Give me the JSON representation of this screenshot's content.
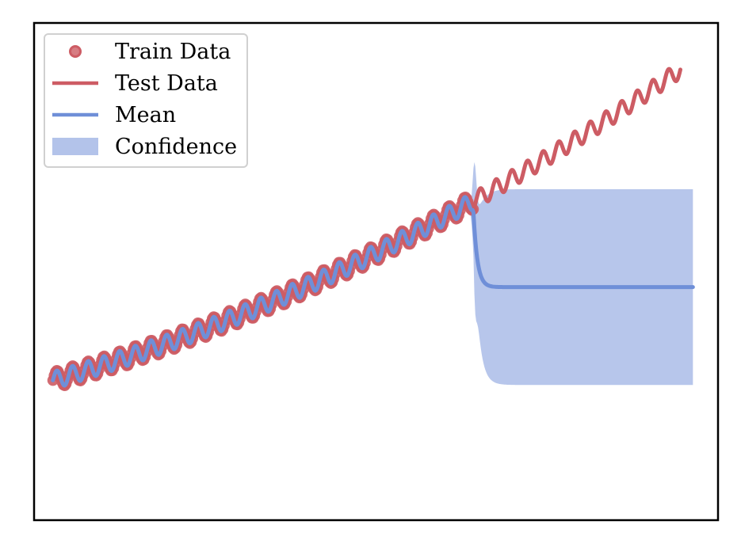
{
  "chart_data": {
    "type": "line",
    "title": "",
    "xlabel": "",
    "ylabel": "",
    "xlim": [
      -0.03,
      1.06
    ],
    "ylim": [
      -0.45,
      1.15
    ],
    "grid": false,
    "ticks_visible": false,
    "legend": {
      "placement": "top-left",
      "entries": [
        {
          "label": "Train Data",
          "kind": "marker",
          "color": "#cd5c64"
        },
        {
          "label": "Test Data",
          "kind": "line",
          "color": "#cd5c64"
        },
        {
          "label": "Mean",
          "kind": "line",
          "color": "#6f8fd8"
        },
        {
          "label": "Confidence",
          "kind": "band",
          "color": "#b3c3ea"
        }
      ]
    },
    "signal": {
      "trend_start": 0.0,
      "trend_slope": 0.58,
      "trend_curvature": 0.42,
      "oscillation_amplitude": 0.028,
      "oscillation_cycles": 40
    },
    "series": [
      {
        "name": "Train Data",
        "kind": "scatter",
        "color": "#cd5c64",
        "x_range": [
          0.0,
          0.67
        ],
        "points": 320
      },
      {
        "name": "Test Data",
        "kind": "line",
        "color": "#cd5c64",
        "x_range": [
          0.67,
          1.0
        ]
      },
      {
        "name": "Mean",
        "kind": "line",
        "color": "#6f8fd8",
        "x_range": [
          0.0,
          1.02
        ],
        "fit_until": 0.67,
        "reversion_level": 0.3,
        "reversion_rate": 160
      },
      {
        "name": "Confidence",
        "kind": "band",
        "color": "#b3c3ea",
        "x_range": [
          0.0,
          1.02
        ],
        "fit_band_halfwidth": 0.01,
        "bump_x": 0.672,
        "bump_extra": 0.15,
        "far_halfwidth": 0.315,
        "spread_rate": 110
      }
    ]
  }
}
